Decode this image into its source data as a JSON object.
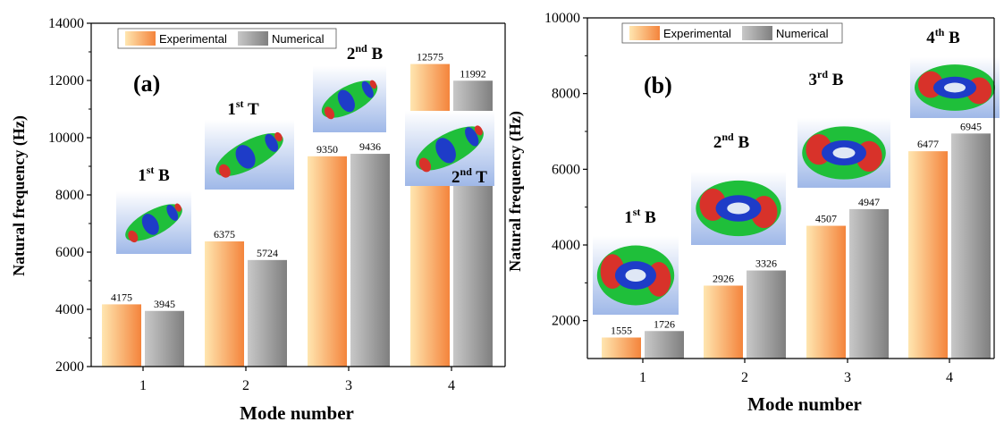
{
  "colors": {
    "experimental_light": "#ffe6b0",
    "experimental_dark": "#f4843c",
    "numerical_light": "#c8c8c8",
    "numerical_dark": "#7f7f7f",
    "mode_blue": "#1e3cc8",
    "mode_green": "#1fbf3a",
    "mode_red": "#d8322a",
    "mode_bg_top": "#ffffff",
    "mode_bg_bottom": "#9fb8e8"
  },
  "chart_data": [
    {
      "type": "bar",
      "panel_label": "(a)",
      "title": "",
      "xlabel": "Mode number",
      "ylabel": "Natural frequency (Hz)",
      "categories": [
        "1",
        "2",
        "3",
        "4"
      ],
      "ylim": [
        2000,
        14000
      ],
      "yticks": [
        "2000",
        "4000",
        "6000",
        "8000",
        "10000",
        "12000",
        "14000"
      ],
      "series": [
        {
          "name": "Experimental",
          "values": [
            4175,
            6375,
            9350,
            12575
          ],
          "labels": [
            "4175",
            "6375",
            "9350",
            "12575"
          ]
        },
        {
          "name": "Numerical",
          "values": [
            3945,
            5724,
            9436,
            11992
          ],
          "labels": [
            "3945",
            "5724",
            "9436",
            "11992"
          ]
        }
      ],
      "legend": "top-left",
      "grid": false,
      "mode_annotations": [
        {
          "base": "1",
          "sup": "st",
          "suffix": " B",
          "icon": "bending-mode-shape-image"
        },
        {
          "base": "1",
          "sup": "st",
          "suffix": " T",
          "icon": "torsion-mode-shape-image"
        },
        {
          "base": "2",
          "sup": "nd",
          "suffix": " B",
          "icon": "bending-mode-shape-image"
        },
        {
          "base": "2",
          "sup": "nd",
          "suffix": " T",
          "icon": "torsion-mode-shape-image"
        }
      ]
    },
    {
      "type": "bar",
      "panel_label": "(b)",
      "title": "",
      "xlabel": "Mode number",
      "ylabel": "Natural frequency (Hz)",
      "categories": [
        "1",
        "2",
        "3",
        "4"
      ],
      "ylim": [
        1000,
        10000
      ],
      "yticks": [
        "2000",
        "4000",
        "6000",
        "8000",
        "10000"
      ],
      "series": [
        {
          "name": "Experimental",
          "values": [
            1555,
            2926,
            4507,
            6477
          ],
          "labels": [
            "1555",
            "2926",
            "4507",
            "6477"
          ]
        },
        {
          "name": "Numerical",
          "values": [
            1726,
            3326,
            4947,
            6945
          ],
          "labels": [
            "1726",
            "3326",
            "4947",
            "6945"
          ]
        }
      ],
      "legend": "top-left",
      "grid": false,
      "mode_annotations": [
        {
          "base": "1",
          "sup": "st",
          "suffix": " B",
          "icon": "bending-mode-shape-image"
        },
        {
          "base": "2",
          "sup": "nd",
          "suffix": " B",
          "icon": "bending-mode-shape-image"
        },
        {
          "base": "3",
          "sup": "rd",
          "suffix": " B",
          "icon": "bending-mode-shape-image"
        },
        {
          "base": "4",
          "sup": "th",
          "suffix": " B",
          "icon": "bending-mode-shape-image"
        }
      ]
    }
  ]
}
